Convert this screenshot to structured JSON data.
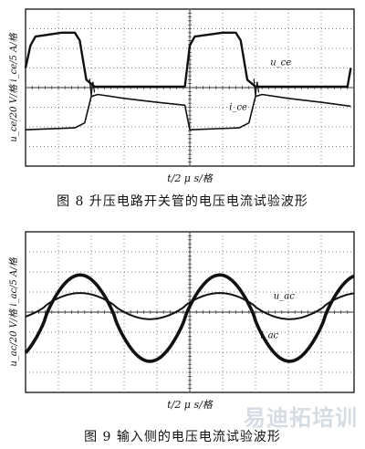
{
  "chart_data": [
    {
      "type": "line",
      "title": "",
      "caption": "图 8   升压电路开关管的电压电流试验波形",
      "xlabel": "t/2  μ s/格",
      "ylabel": "u_ce/20 V/格  i_ce/5 A/格",
      "grid": true,
      "grid_divisions": [
        10,
        8
      ],
      "x_range": [
        0,
        20
      ],
      "y_range": [
        -8,
        8
      ],
      "series": [
        {
          "name": "u_ce",
          "points": [
            [
              0,
              2.0
            ],
            [
              0.3,
              4.3
            ],
            [
              0.6,
              5.2
            ],
            [
              2.2,
              5.6
            ],
            [
              3.0,
              5.6
            ],
            [
              3.3,
              4.8
            ],
            [
              3.7,
              0.8
            ],
            [
              4.2,
              0.1
            ],
            [
              9.7,
              0.1
            ],
            [
              10.0,
              4.3
            ],
            [
              10.3,
              5.2
            ],
            [
              12.0,
              5.6
            ],
            [
              12.8,
              5.6
            ],
            [
              13.1,
              4.8
            ],
            [
              13.5,
              0.8
            ],
            [
              14.0,
              0.1
            ],
            [
              19.6,
              0.1
            ],
            [
              19.8,
              2.0
            ]
          ]
        },
        {
          "name": "i_ce",
          "points": [
            [
              0,
              -4.3
            ],
            [
              3.0,
              -4.1
            ],
            [
              3.6,
              -3.6
            ],
            [
              4.0,
              -0.9
            ],
            [
              4.4,
              -0.7
            ],
            [
              6.0,
              -1.1
            ],
            [
              8.0,
              -1.5
            ],
            [
              9.7,
              -1.8
            ],
            [
              10.0,
              -4.3
            ],
            [
              13.0,
              -4.1
            ],
            [
              13.6,
              -3.6
            ],
            [
              14.0,
              -0.9
            ],
            [
              14.4,
              -0.7
            ],
            [
              16.0,
              -1.1
            ],
            [
              18.0,
              -1.5
            ],
            [
              19.8,
              -1.9
            ]
          ]
        }
      ],
      "annotations": {
        "u_ce": "u_ce",
        "i_ce": "i_ce"
      }
    },
    {
      "type": "line",
      "title": "",
      "caption": "图 9   输入侧的电压电流试验波形",
      "xlabel": "t/2  μ s/格",
      "ylabel": "u_ac/20 V/格  i_ac/5 A/格",
      "grid": true,
      "grid_divisions": [
        10,
        8
      ],
      "x_range": [
        0,
        20
      ],
      "y_range": [
        -8,
        8
      ],
      "series": [
        {
          "name": "u_ac",
          "amplitude": 4.3,
          "period": 8.5,
          "phase_zero_at": 1.2,
          "offset": -0.6
        },
        {
          "name": "i_ac",
          "amplitude": 1.3,
          "period": 8.5,
          "phase_zero_at": 1.2,
          "offset": 0.6
        }
      ],
      "annotations": {
        "u_ac": "u_ac",
        "i_ac": "i_ac"
      }
    }
  ],
  "watermark": "易迪拓培训"
}
